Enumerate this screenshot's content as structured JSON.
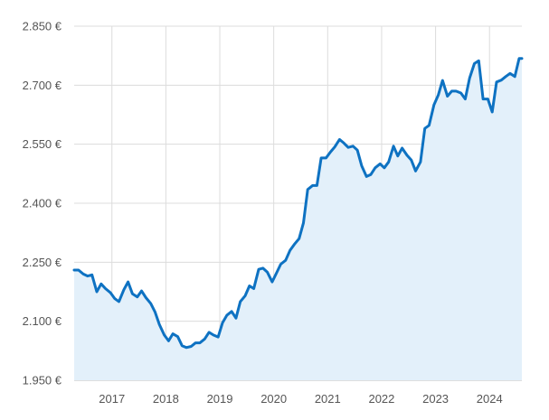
{
  "chart_data": {
    "type": "area",
    "title": "",
    "xlabel": "",
    "ylabel": "",
    "ylim": [
      1950,
      2850
    ],
    "xlim": [
      2016.3,
      2024.6
    ],
    "grid": true,
    "legend": "none",
    "colors": {
      "line": "#0e72c2",
      "fill": "#e3f0fa",
      "grid": "#dcdcdc",
      "text": "#555555"
    },
    "y_ticks": [
      {
        "value": 1950,
        "label": "1.950 €"
      },
      {
        "value": 2100,
        "label": "2.100 €"
      },
      {
        "value": 2250,
        "label": "2.250 €"
      },
      {
        "value": 2400,
        "label": "2.400 €"
      },
      {
        "value": 2550,
        "label": "2.550 €"
      },
      {
        "value": 2700,
        "label": "2.700 €"
      },
      {
        "value": 2850,
        "label": "2.850 €"
      }
    ],
    "x_ticks": [
      {
        "value": 2017,
        "label": "2017"
      },
      {
        "value": 2018,
        "label": "2018"
      },
      {
        "value": 2019,
        "label": "2019"
      },
      {
        "value": 2020,
        "label": "2020"
      },
      {
        "value": 2021,
        "label": "2021"
      },
      {
        "value": 2022,
        "label": "2022"
      },
      {
        "value": 2023,
        "label": "2023"
      },
      {
        "value": 2024,
        "label": "2024"
      }
    ],
    "series": [
      {
        "x": [
          2016.3,
          2016.38,
          2016.47,
          2016.55,
          2016.63,
          2016.72,
          2016.8,
          2016.88,
          2016.97,
          2017.05,
          2017.13,
          2017.22,
          2017.3,
          2017.38,
          2017.47,
          2017.55,
          2017.63,
          2017.72,
          2017.8,
          2017.88,
          2017.97,
          2018.05,
          2018.13,
          2018.22,
          2018.3,
          2018.38,
          2018.47,
          2018.55,
          2018.63,
          2018.72,
          2018.8,
          2018.88,
          2018.97,
          2019.05,
          2019.13,
          2019.22,
          2019.3,
          2019.38,
          2019.47,
          2019.55,
          2019.63,
          2019.72,
          2019.8,
          2019.88,
          2019.97,
          2020.05,
          2020.13,
          2020.22,
          2020.3,
          2020.38,
          2020.47,
          2020.55,
          2020.63,
          2020.72,
          2020.8,
          2020.88,
          2020.97,
          2021.05,
          2021.13,
          2021.22,
          2021.3,
          2021.38,
          2021.47,
          2021.55,
          2021.63,
          2021.72,
          2021.8,
          2021.88,
          2021.97,
          2022.05,
          2022.13,
          2022.22,
          2022.3,
          2022.38,
          2022.47,
          2022.55,
          2022.63,
          2022.72,
          2022.8,
          2022.88,
          2022.97,
          2023.05,
          2023.13,
          2023.22,
          2023.3,
          2023.38,
          2023.47,
          2023.55,
          2023.63,
          2023.72,
          2023.8,
          2023.88,
          2023.97,
          2024.05,
          2024.13,
          2024.22,
          2024.3,
          2024.38,
          2024.47,
          2024.55,
          2024.6
        ],
        "values": [
          2230,
          2230,
          2220,
          2215,
          2218,
          2175,
          2195,
          2183,
          2173,
          2158,
          2150,
          2180,
          2200,
          2170,
          2162,
          2177,
          2160,
          2145,
          2123,
          2092,
          2065,
          2050,
          2068,
          2061,
          2038,
          2033,
          2036,
          2045,
          2045,
          2055,
          2072,
          2065,
          2060,
          2096,
          2115,
          2125,
          2108,
          2150,
          2165,
          2190,
          2183,
          2232,
          2235,
          2225,
          2200,
          2222,
          2245,
          2255,
          2280,
          2295,
          2310,
          2350,
          2435,
          2445,
          2445,
          2515,
          2515,
          2530,
          2543,
          2562,
          2553,
          2542,
          2545,
          2535,
          2495,
          2468,
          2473,
          2490,
          2500,
          2490,
          2505,
          2545,
          2520,
          2540,
          2522,
          2510,
          2482,
          2505,
          2590,
          2598,
          2650,
          2675,
          2712,
          2672,
          2685,
          2685,
          2680,
          2665,
          2718,
          2755,
          2762,
          2665,
          2665,
          2632,
          2708,
          2713,
          2722,
          2730,
          2722,
          2768,
          2768
        ]
      }
    ]
  }
}
